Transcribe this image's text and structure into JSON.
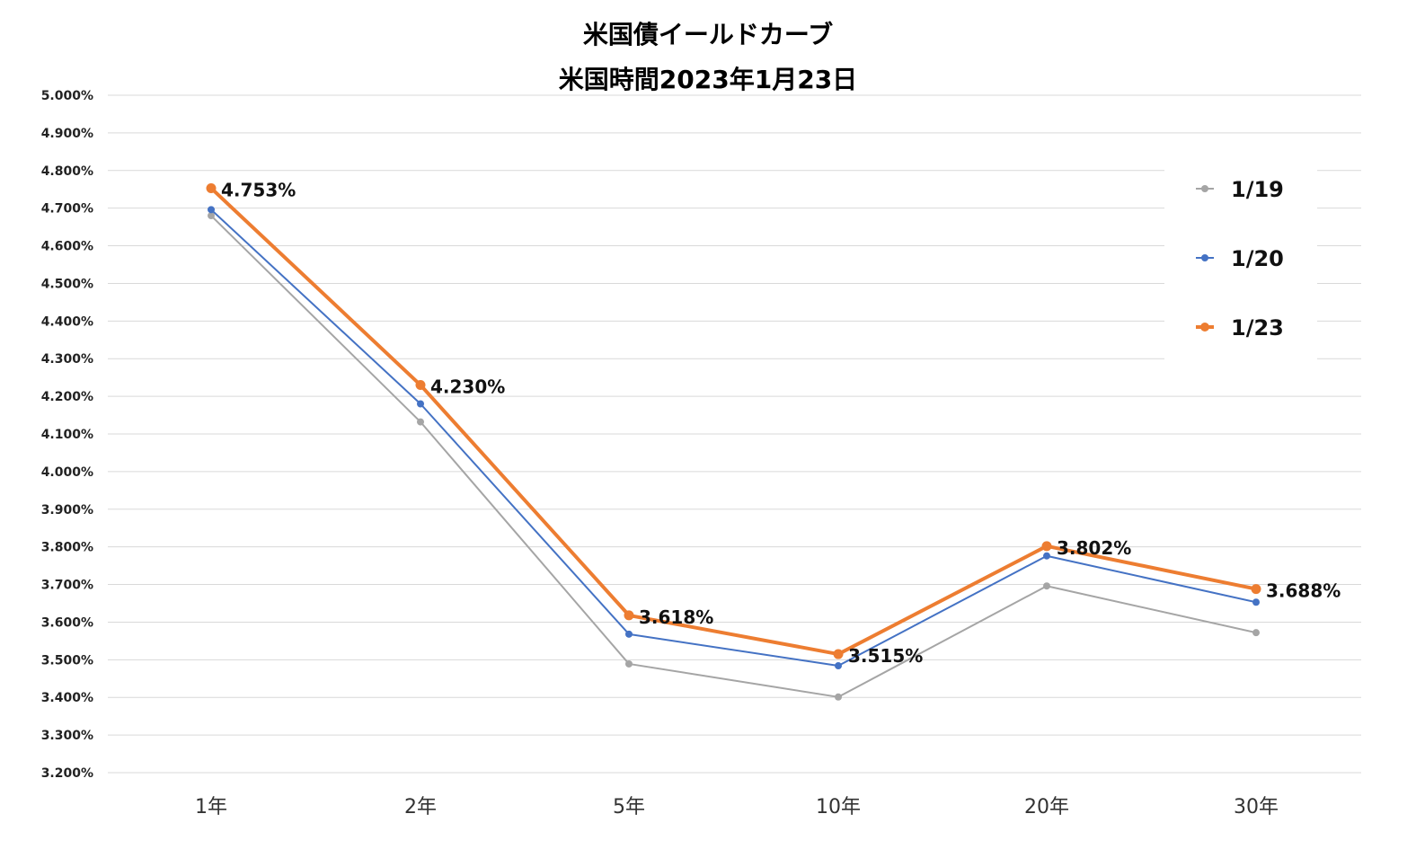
{
  "chart_data": {
    "type": "line",
    "title": "米国債イールドカーブ",
    "subtitle": "米国時間2023年1月23日",
    "categories": [
      "1年",
      "2年",
      "5年",
      "10年",
      "20年",
      "30年"
    ],
    "ylim": [
      3.2,
      5.0
    ],
    "y_tick_labels": [
      "5.000%",
      "4.900%",
      "4.800%",
      "4.700%",
      "4.600%",
      "4.500%",
      "4.400%",
      "4.300%",
      "4.200%",
      "4.100%",
      "4.000%",
      "3.900%",
      "3.800%",
      "3.700%",
      "3.600%",
      "3.500%",
      "3.400%",
      "3.300%",
      "3.200%"
    ],
    "grid": true,
    "legend_position": "right",
    "series": [
      {
        "name": "1/19",
        "color": "#a5a5a5",
        "values": [
          4.68,
          4.132,
          3.489,
          3.401,
          3.696,
          3.572
        ]
      },
      {
        "name": "1/20",
        "color": "#4472c4",
        "values": [
          4.696,
          4.18,
          3.568,
          3.484,
          3.776,
          3.653
        ]
      },
      {
        "name": "1/23",
        "color": "#ed7d31",
        "values": [
          4.753,
          4.23,
          3.618,
          3.515,
          3.802,
          3.688
        ]
      }
    ],
    "data_labels": [
      "4.753%",
      "4.230%",
      "3.618%",
      "3.515%",
      "3.802%",
      "3.688%"
    ]
  }
}
